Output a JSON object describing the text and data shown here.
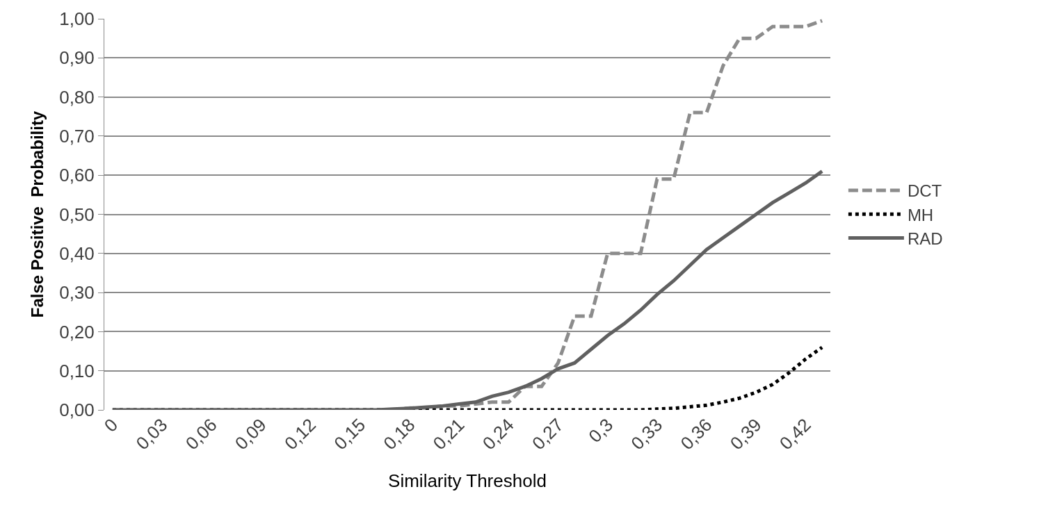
{
  "chart_data": {
    "type": "line",
    "xlabel": "Similarity Threshold",
    "ylabel": "False Positive  Probability",
    "categories": [
      "0",
      null,
      null,
      "0,03",
      null,
      null,
      "0,06",
      null,
      null,
      "0,09",
      null,
      null,
      "0,12",
      null,
      null,
      "0,15",
      null,
      null,
      "0,18",
      null,
      null,
      "0,21",
      null,
      null,
      "0,24",
      null,
      null,
      "0,27",
      null,
      null,
      "0,3",
      null,
      null,
      "0,33",
      null,
      null,
      "0,36",
      null,
      null,
      "0,39",
      null,
      null,
      "0,42",
      null
    ],
    "series": [
      {
        "name": "DCT",
        "color": "#8c8c8c",
        "line_style": "dashed",
        "values": [
          0,
          0,
          0,
          0,
          0,
          0,
          0,
          0,
          0,
          0,
          0,
          0,
          0,
          0,
          0,
          0,
          0,
          0,
          0.005,
          0.005,
          0.01,
          0.01,
          0.015,
          0.02,
          0.02,
          0.06,
          0.06,
          0.12,
          0.24,
          0.24,
          0.4,
          0.4,
          0.4,
          0.59,
          0.59,
          0.76,
          0.76,
          0.88,
          0.95,
          0.95,
          0.98,
          0.98,
          0.98,
          0.995
        ]
      },
      {
        "name": "MH",
        "color": "#000000",
        "line_style": "dotted",
        "values": [
          0,
          0,
          0,
          0,
          0,
          0,
          0,
          0,
          0,
          0,
          0,
          0,
          0,
          0,
          0,
          0,
          0,
          0,
          0,
          0,
          0,
          0,
          0,
          0,
          0,
          0,
          0,
          0,
          0,
          0,
          0,
          0,
          0,
          0.002,
          0.004,
          0.008,
          0.012,
          0.02,
          0.03,
          0.045,
          0.065,
          0.095,
          0.13,
          0.16
        ]
      },
      {
        "name": "RAD",
        "color": "#606060",
        "line_style": "solid",
        "values": [
          0,
          0,
          0,
          0,
          0,
          0,
          0,
          0,
          0,
          0,
          0,
          0,
          0,
          0,
          0,
          0,
          0,
          0.002,
          0.004,
          0.007,
          0.01,
          0.015,
          0.02,
          0.035,
          0.045,
          0.06,
          0.08,
          0.105,
          0.12,
          0.155,
          0.19,
          0.22,
          0.255,
          0.295,
          0.33,
          0.37,
          0.41,
          0.44,
          0.47,
          0.5,
          0.53,
          0.555,
          0.58,
          0.61
        ]
      }
    ],
    "ylim": [
      0,
      1
    ],
    "yticks": [
      {
        "value": 0,
        "label": "0,00"
      },
      {
        "value": 0.1,
        "label": "0,10"
      },
      {
        "value": 0.2,
        "label": "0,20"
      },
      {
        "value": 0.3,
        "label": "0,30"
      },
      {
        "value": 0.4,
        "label": "0,40"
      },
      {
        "value": 0.5,
        "label": "0,50"
      },
      {
        "value": 0.6,
        "label": "0,60"
      },
      {
        "value": 0.7,
        "label": "0,70"
      },
      {
        "value": 0.8,
        "label": "0,80"
      },
      {
        "value": 0.9,
        "label": "0,90"
      },
      {
        "value": 1,
        "label": "1,00"
      }
    ],
    "grid": "y",
    "legend": "right",
    "marker": "none"
  }
}
